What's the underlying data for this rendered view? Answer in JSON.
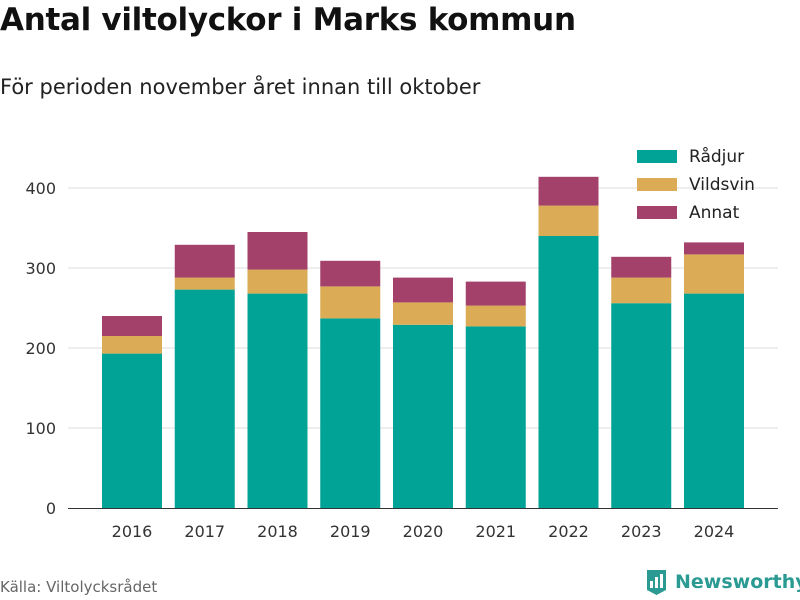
{
  "title": "Antal viltolyckor i Marks kommun",
  "subtitle": "För perioden november året innan till oktober",
  "source": "Källa: Viltolycksrådet",
  "brand": {
    "name": "Newsworthy",
    "icon": "bar-chart-logo-icon",
    "color": "#2a9a92"
  },
  "chart_data": {
    "type": "bar",
    "stacked": true,
    "categories": [
      "2016",
      "2017",
      "2018",
      "2019",
      "2020",
      "2021",
      "2022",
      "2023",
      "2024"
    ],
    "series": [
      {
        "name": "Rådjur",
        "color": "#00a396",
        "values": [
          193,
          273,
          268,
          237,
          229,
          227,
          340,
          256,
          268
        ]
      },
      {
        "name": "Vildsvin",
        "color": "#dbab55",
        "values": [
          22,
          15,
          30,
          40,
          28,
          26,
          38,
          32,
          49
        ]
      },
      {
        "name": "Annat",
        "color": "#a3416a",
        "values": [
          25,
          41,
          47,
          32,
          31,
          30,
          36,
          26,
          15
        ]
      }
    ],
    "ylim": [
      0,
      450
    ],
    "yticks": [
      0,
      100,
      200,
      300,
      400
    ],
    "grid": true,
    "legend": "top-right",
    "xlabel": "",
    "ylabel": ""
  }
}
